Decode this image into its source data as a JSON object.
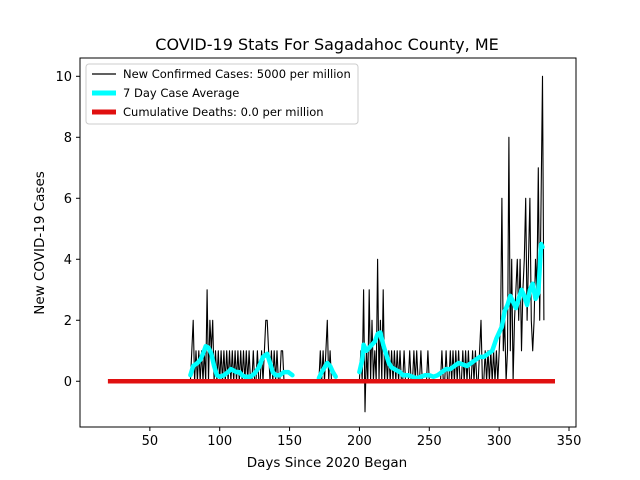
{
  "chart_data": {
    "type": "line",
    "title": "COVID-19 Stats For Sagadahoc County, ME",
    "xlabel": "Days Since 2020 Began",
    "ylabel": "New COVID-19 Cases",
    "xlim": [
      0,
      355
    ],
    "ylim": [
      -1.5,
      10.6
    ],
    "xticks": [
      50,
      100,
      150,
      200,
      250,
      300,
      350
    ],
    "yticks": [
      0,
      2,
      4,
      6,
      8,
      10
    ],
    "grid": false,
    "legend_position": "upper-left",
    "series": [
      {
        "name": "New Confirmed Cases: 5000 per million",
        "color": "#000000",
        "style": "thin-line",
        "points": [
          [
            79,
            0
          ],
          [
            80,
            1
          ],
          [
            81,
            2
          ],
          [
            82,
            0
          ],
          [
            83,
            1
          ],
          [
            84,
            0
          ],
          [
            85,
            1
          ],
          [
            86,
            0
          ],
          [
            87,
            1
          ],
          [
            88,
            0
          ],
          [
            89,
            1
          ],
          [
            90,
            0
          ],
          [
            91,
            3
          ],
          [
            92,
            0
          ],
          [
            93,
            2
          ],
          [
            94,
            1
          ],
          [
            95,
            2
          ],
          [
            96,
            0
          ],
          [
            97,
            1
          ],
          [
            98,
            0
          ],
          [
            99,
            1
          ],
          [
            100,
            0
          ],
          [
            101,
            1
          ],
          [
            102,
            0
          ],
          [
            103,
            1
          ],
          [
            104,
            0
          ],
          [
            105,
            1
          ],
          [
            106,
            0
          ],
          [
            107,
            1
          ],
          [
            108,
            0
          ],
          [
            109,
            1
          ],
          [
            110,
            0
          ],
          [
            111,
            1
          ],
          [
            112,
            0
          ],
          [
            113,
            1
          ],
          [
            114,
            0
          ],
          [
            115,
            1
          ],
          [
            116,
            0
          ],
          [
            117,
            1
          ],
          [
            118,
            0
          ],
          [
            119,
            1
          ],
          [
            120,
            0
          ],
          [
            121,
            1
          ],
          [
            122,
            0
          ],
          [
            123,
            0
          ],
          [
            124,
            1
          ],
          [
            125,
            0
          ],
          [
            126,
            0
          ],
          [
            127,
            1
          ],
          [
            128,
            0
          ],
          [
            129,
            0
          ],
          [
            130,
            1
          ],
          [
            131,
            0
          ],
          [
            132,
            1
          ],
          [
            133,
            2
          ],
          [
            134,
            2
          ],
          [
            135,
            1
          ],
          [
            136,
            0
          ],
          [
            137,
            1
          ],
          [
            138,
            0
          ],
          [
            139,
            1
          ],
          [
            140,
            0
          ],
          [
            141,
            1
          ],
          [
            142,
            0
          ],
          [
            143,
            0
          ],
          [
            144,
            1
          ],
          [
            145,
            1
          ],
          [
            146,
            0
          ],
          [
            147,
            0
          ],
          [
            148,
            0
          ],
          [
            149,
            0
          ],
          [
            150,
            0
          ],
          [
            151,
            0
          ],
          [
            152,
            0
          ],
          [
            153,
            0
          ],
          [
            171,
            0
          ],
          [
            172,
            1
          ],
          [
            173,
            0
          ],
          [
            174,
            1
          ],
          [
            175,
            0
          ],
          [
            176,
            1
          ],
          [
            177,
            2
          ],
          [
            178,
            0
          ],
          [
            179,
            1
          ],
          [
            180,
            0
          ],
          [
            181,
            0
          ],
          [
            182,
            0
          ],
          [
            183,
            0
          ],
          [
            184,
            0
          ],
          [
            200,
            0
          ],
          [
            201,
            1
          ],
          [
            202,
            0
          ],
          [
            203,
            3
          ],
          [
            204,
            -1
          ],
          [
            205,
            1
          ],
          [
            206,
            0
          ],
          [
            207,
            3
          ],
          [
            208,
            0
          ],
          [
            209,
            2
          ],
          [
            210,
            0
          ],
          [
            211,
            1
          ],
          [
            212,
            0
          ],
          [
            213,
            4
          ],
          [
            214,
            0
          ],
          [
            215,
            2
          ],
          [
            216,
            0
          ],
          [
            217,
            3
          ],
          [
            218,
            0
          ],
          [
            219,
            1
          ],
          [
            220,
            0
          ],
          [
            221,
            1
          ],
          [
            222,
            0
          ],
          [
            223,
            1
          ],
          [
            224,
            0
          ],
          [
            225,
            1
          ],
          [
            226,
            0
          ],
          [
            227,
            1
          ],
          [
            228,
            0
          ],
          [
            229,
            1
          ],
          [
            230,
            0
          ],
          [
            231,
            0
          ],
          [
            232,
            1
          ],
          [
            233,
            0
          ],
          [
            234,
            0
          ],
          [
            235,
            0
          ],
          [
            236,
            1
          ],
          [
            237,
            0
          ],
          [
            238,
            0
          ],
          [
            239,
            1
          ],
          [
            240,
            0
          ],
          [
            241,
            1
          ],
          [
            242,
            0
          ],
          [
            243,
            0
          ],
          [
            244,
            1
          ],
          [
            245,
            0
          ],
          [
            246,
            0
          ],
          [
            247,
            0
          ],
          [
            248,
            0
          ],
          [
            249,
            1
          ],
          [
            250,
            0
          ],
          [
            251,
            0
          ],
          [
            252,
            0
          ],
          [
            253,
            0
          ],
          [
            254,
            0
          ],
          [
            255,
            0
          ],
          [
            256,
            0
          ],
          [
            257,
            0
          ],
          [
            258,
            0
          ],
          [
            259,
            1
          ],
          [
            260,
            0
          ],
          [
            261,
            0
          ],
          [
            262,
            1
          ],
          [
            263,
            0
          ],
          [
            264,
            0
          ],
          [
            265,
            1
          ],
          [
            266,
            0
          ],
          [
            267,
            1
          ],
          [
            268,
            0
          ],
          [
            269,
            1
          ],
          [
            270,
            0
          ],
          [
            271,
            1
          ],
          [
            272,
            0
          ],
          [
            273,
            0
          ],
          [
            274,
            1
          ],
          [
            275,
            0
          ],
          [
            276,
            1
          ],
          [
            277,
            0
          ],
          [
            278,
            1
          ],
          [
            279,
            0
          ],
          [
            280,
            0
          ],
          [
            281,
            1
          ],
          [
            282,
            0
          ],
          [
            283,
            1
          ],
          [
            284,
            0
          ],
          [
            285,
            0
          ],
          [
            286,
            1
          ],
          [
            287,
            2
          ],
          [
            288,
            0
          ],
          [
            289,
            0
          ],
          [
            290,
            1
          ],
          [
            291,
            0
          ],
          [
            292,
            1
          ],
          [
            293,
            0
          ],
          [
            294,
            1
          ],
          [
            295,
            0
          ],
          [
            296,
            1
          ],
          [
            297,
            0
          ],
          [
            298,
            1
          ],
          [
            299,
            0
          ],
          [
            300,
            1
          ],
          [
            301,
            2
          ],
          [
            302,
            6
          ],
          [
            303,
            1
          ],
          [
            304,
            2
          ],
          [
            305,
            0
          ],
          [
            306,
            1
          ],
          [
            307,
            8
          ],
          [
            308,
            1
          ],
          [
            309,
            4
          ],
          [
            310,
            0
          ],
          [
            311,
            2
          ],
          [
            312,
            3
          ],
          [
            313,
            4
          ],
          [
            314,
            2
          ],
          [
            315,
            4
          ],
          [
            316,
            1
          ],
          [
            317,
            3
          ],
          [
            318,
            4
          ],
          [
            319,
            6
          ],
          [
            320,
            2
          ],
          [
            321,
            4
          ],
          [
            322,
            6
          ],
          [
            323,
            2
          ],
          [
            324,
            1
          ],
          [
            325,
            2
          ],
          [
            326,
            4
          ],
          [
            327,
            3
          ],
          [
            328,
            7
          ],
          [
            329,
            2
          ],
          [
            330,
            6
          ],
          [
            331,
            10
          ],
          [
            332,
            2
          ]
        ]
      },
      {
        "name": "7 Day Case Average",
        "color": "#00ffff",
        "style": "thick-line",
        "segments": [
          [
            [
              79,
              0.2
            ],
            [
              81,
              0.5
            ],
            [
              84,
              0.6
            ],
            [
              86,
              0.7
            ],
            [
              88,
              0.9
            ],
            [
              90,
              1.15
            ],
            [
              92,
              1.1
            ],
            [
              94,
              0.9
            ],
            [
              96,
              0.5
            ],
            [
              98,
              0.2
            ],
            [
              100,
              0.15
            ],
            [
              103,
              0.2
            ],
            [
              106,
              0.3
            ],
            [
              108,
              0.4
            ],
            [
              110,
              0.35
            ],
            [
              112,
              0.3
            ],
            [
              114,
              0.3
            ],
            [
              116,
              0.2
            ],
            [
              118,
              0.15
            ],
            [
              122,
              0.15
            ],
            [
              125,
              0.25
            ],
            [
              128,
              0.45
            ],
            [
              131,
              0.8
            ],
            [
              134,
              0.9
            ],
            [
              136,
              0.6
            ],
            [
              138,
              0.3
            ],
            [
              140,
              0.2
            ],
            [
              143,
              0.2
            ],
            [
              146,
              0.3
            ],
            [
              149,
              0.3
            ],
            [
              152,
              0.2
            ]
          ],
          [
            [
              171,
              0.1
            ],
            [
              173,
              0.3
            ],
            [
              175,
              0.45
            ],
            [
              177,
              0.6
            ],
            [
              179,
              0.5
            ],
            [
              181,
              0.3
            ],
            [
              183,
              0.15
            ]
          ],
          [
            [
              200,
              0.3
            ],
            [
              202,
              0.7
            ],
            [
              203,
              1.2
            ],
            [
              205,
              1.0
            ],
            [
              207,
              1.1
            ],
            [
              209,
              1.2
            ],
            [
              211,
              1.3
            ],
            [
              213,
              1.55
            ],
            [
              215,
              1.6
            ],
            [
              217,
              1.2
            ],
            [
              219,
              0.9
            ],
            [
              221,
              0.6
            ],
            [
              223,
              0.45
            ],
            [
              225,
              0.4
            ],
            [
              227,
              0.35
            ],
            [
              229,
              0.3
            ],
            [
              231,
              0.2
            ],
            [
              233,
              0.2
            ],
            [
              235,
              0.2
            ],
            [
              238,
              0.15
            ],
            [
              241,
              0.1
            ],
            [
              244,
              0.15
            ],
            [
              247,
              0.2
            ],
            [
              250,
              0.2
            ],
            [
              253,
              0.15
            ],
            [
              256,
              0.2
            ],
            [
              259,
              0.3
            ],
            [
              262,
              0.4
            ],
            [
              265,
              0.4
            ],
            [
              268,
              0.5
            ],
            [
              271,
              0.6
            ],
            [
              274,
              0.55
            ],
            [
              277,
              0.5
            ],
            [
              280,
              0.6
            ],
            [
              283,
              0.7
            ],
            [
              286,
              0.8
            ],
            [
              289,
              0.8
            ],
            [
              292,
              0.9
            ],
            [
              295,
              1.0
            ],
            [
              298,
              1.4
            ],
            [
              300,
              1.6
            ],
            [
              302,
              1.8
            ],
            [
              304,
              2.3
            ],
            [
              306,
              2.5
            ],
            [
              308,
              2.8
            ],
            [
              310,
              2.6
            ],
            [
              312,
              2.4
            ],
            [
              314,
              2.7
            ],
            [
              316,
              3.0
            ],
            [
              318,
              2.8
            ],
            [
              320,
              2.5
            ],
            [
              322,
              3.0
            ],
            [
              324,
              3.2
            ],
            [
              326,
              2.7
            ],
            [
              328,
              2.9
            ],
            [
              330,
              4.5
            ],
            [
              331,
              4.4
            ]
          ]
        ]
      },
      {
        "name": "Cumulative Deaths: 0.0 per million",
        "color": "#e01010",
        "style": "very-thick-line",
        "points": [
          [
            20,
            0
          ],
          [
            340,
            0
          ]
        ]
      }
    ]
  }
}
